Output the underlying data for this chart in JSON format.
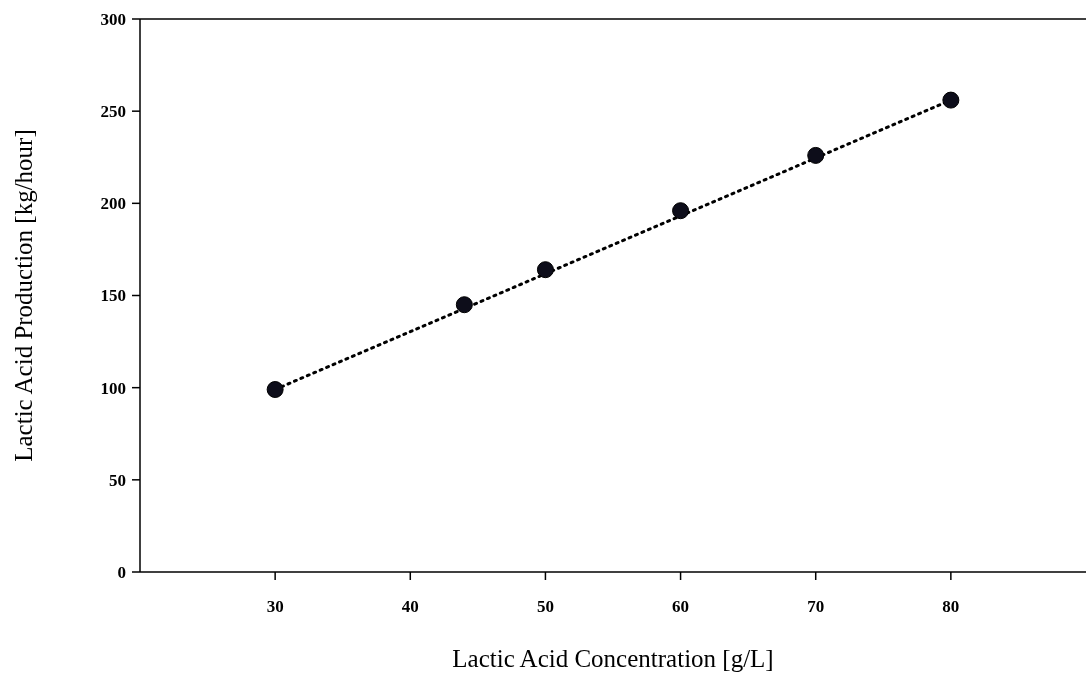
{
  "chart_data": {
    "type": "scatter",
    "xlabel": "Lactic Acid Concentration [g/L]",
    "ylabel": "Lactic Acid Production [kg/hour]",
    "x": [
      30,
      44,
      50,
      60,
      70,
      80
    ],
    "xlim": [
      20,
      90
    ],
    "xticks": [
      30,
      40,
      50,
      60,
      70,
      80
    ],
    "ylim": [
      0,
      300
    ],
    "yticks": [
      0,
      50,
      100,
      150,
      200,
      250,
      300
    ],
    "grid": false,
    "series": [
      {
        "type": "line",
        "x": [
          30,
          80
        ],
        "values": [
          99,
          256
        ],
        "color": "#000000",
        "line_style": "dotted",
        "marker": "none"
      },
      {
        "values": [
          99,
          145,
          164,
          196,
          226,
          256
        ],
        "color": "#0d0d1a",
        "marker": "circle"
      }
    ]
  }
}
